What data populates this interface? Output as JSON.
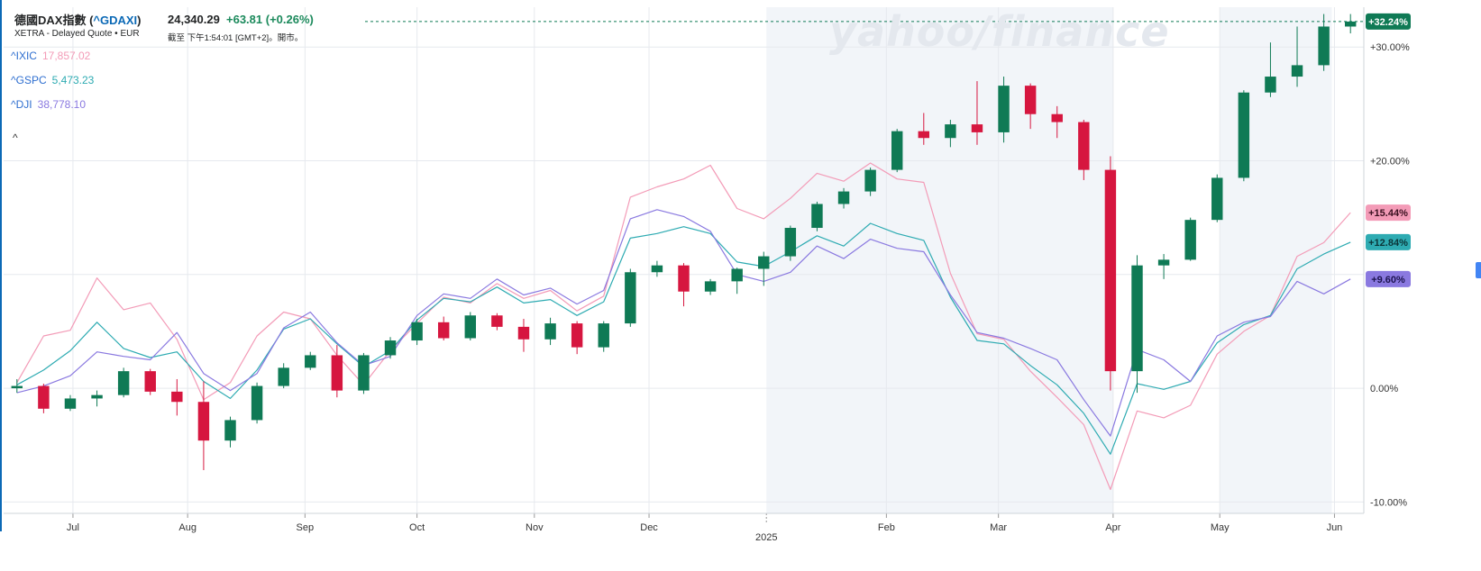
{
  "header": {
    "name": "德國DAX指數",
    "symbol_open": " (",
    "symbol": "^GDAXI",
    "symbol_close": ")",
    "price": "24,340.29",
    "change": "+63.81",
    "change_pct": "(+0.26%)",
    "source": "XETRA - Delayed Quote • EUR",
    "time": "截至 下午1:54:01 [GMT+2]。開市。",
    "watermark": "yahoo/finance"
  },
  "comparisons": [
    {
      "symbol": "^IXIC",
      "value": "17,857.02",
      "color": "#f39bb7"
    },
    {
      "symbol": "^GSPC",
      "value": "5,473.23",
      "color": "#2eabb2"
    },
    {
      "symbol": "^DJI",
      "value": "38,778.10",
      "color": "#8a79e0"
    }
  ],
  "collapse_icon": "^",
  "colors": {
    "up": "#0f7a55",
    "down": "#d6163f",
    "grid": "#e6e9ee",
    "shade": "#f2f5f9",
    "dax_badge": "#0f7a55",
    "ixic_badge": "#f39bb7",
    "gspc_badge": "#2eabb2",
    "dji_badge": "#8a79e0"
  },
  "chart_data": {
    "type": "line",
    "note_units": "x = trading week index from 2024-06-17 (week 0) to 2025-06-02 (week 50); y = % change",
    "x_ticks": [
      {
        "label": "Jul",
        "week": 2.1
      },
      {
        "label": "Aug",
        "week": 6.4
      },
      {
        "label": "Sep",
        "week": 10.8
      },
      {
        "label": "Oct",
        "week": 15.0
      },
      {
        "label": "Nov",
        "week": 19.4
      },
      {
        "label": "Dec",
        "week": 23.7
      },
      {
        "label": "Feb",
        "week": 32.6
      },
      {
        "label": "Mar",
        "week": 36.8
      },
      {
        "label": "Apr",
        "week": 41.1
      },
      {
        "label": "May",
        "week": 45.1
      },
      {
        "label": "Jun",
        "week": 49.4
      }
    ],
    "year_label": {
      "label": "2025",
      "week": 28.1
    },
    "y_ticks": [
      "+30.00%",
      "+20.00%",
      "+10.00%",
      "0.00%",
      "-10.00%"
    ],
    "y_tick_values": [
      30,
      20,
      10,
      0,
      -10
    ],
    "ylim": [
      -11,
      33.5
    ],
    "xlim": [
      -0.5,
      50.5
    ],
    "shaded_weeks": [
      [
        28.1,
        41.1
      ],
      [
        45.1,
        49.3
      ]
    ],
    "badges": [
      {
        "label": "+32.24%",
        "value": 32.24,
        "series": "dax"
      },
      {
        "label": "+15.44%",
        "value": 15.44,
        "series": "ixic"
      },
      {
        "label": "+12.84%",
        "value": 12.84,
        "series": "gspc"
      },
      {
        "label": "+9.60%",
        "value": 9.6,
        "series": "dji"
      }
    ],
    "dax_ohlc": [
      [
        0.0,
        0.8,
        -0.4,
        0.2
      ],
      [
        0.2,
        0.4,
        -2.2,
        -1.8
      ],
      [
        -1.8,
        -0.6,
        -2.0,
        -0.9
      ],
      [
        -0.9,
        -0.2,
        -1.6,
        -0.6
      ],
      [
        -0.6,
        1.8,
        -0.8,
        1.5
      ],
      [
        1.5,
        1.7,
        -0.6,
        -0.3
      ],
      [
        -0.3,
        0.8,
        -2.4,
        -1.2
      ],
      [
        -1.2,
        0.6,
        -7.2,
        -4.6
      ],
      [
        -4.6,
        -2.5,
        -5.2,
        -2.8
      ],
      [
        -2.8,
        0.5,
        -3.1,
        0.2
      ],
      [
        0.2,
        2.2,
        0.0,
        1.8
      ],
      [
        1.8,
        3.2,
        1.6,
        2.9
      ],
      [
        2.9,
        3.8,
        -0.8,
        -0.2
      ],
      [
        -0.2,
        3.1,
        -0.5,
        2.9
      ],
      [
        2.9,
        4.5,
        2.6,
        4.2
      ],
      [
        4.2,
        6.1,
        3.8,
        5.8
      ],
      [
        5.8,
        6.3,
        4.2,
        4.4
      ],
      [
        4.4,
        6.7,
        4.2,
        6.4
      ],
      [
        6.4,
        6.6,
        5.1,
        5.4
      ],
      [
        5.4,
        6.1,
        3.2,
        4.3
      ],
      [
        4.3,
        6.2,
        3.8,
        5.7
      ],
      [
        5.7,
        5.9,
        3.0,
        3.6
      ],
      [
        3.6,
        5.9,
        3.2,
        5.7
      ],
      [
        5.7,
        10.5,
        5.4,
        10.2
      ],
      [
        10.2,
        11.2,
        9.8,
        10.8
      ],
      [
        10.8,
        11.0,
        7.2,
        8.5
      ],
      [
        8.5,
        9.6,
        8.2,
        9.4
      ],
      [
        9.4,
        10.6,
        8.3,
        10.5
      ],
      [
        10.5,
        12.0,
        9.0,
        11.6
      ],
      [
        11.6,
        14.3,
        11.2,
        14.1
      ],
      [
        14.1,
        16.4,
        13.8,
        16.2
      ],
      [
        16.2,
        17.6,
        15.8,
        17.3
      ],
      [
        17.3,
        19.4,
        16.9,
        19.2
      ],
      [
        19.2,
        22.8,
        19.0,
        22.6
      ],
      [
        22.6,
        24.2,
        21.4,
        22.0
      ],
      [
        22.0,
        23.6,
        21.2,
        23.2
      ],
      [
        23.2,
        27.0,
        21.4,
        22.5
      ],
      [
        22.5,
        27.4,
        21.6,
        26.6
      ],
      [
        26.6,
        26.8,
        22.8,
        24.1
      ],
      [
        24.1,
        24.8,
        22.0,
        23.4
      ],
      [
        23.4,
        23.6,
        18.3,
        19.2
      ],
      [
        19.2,
        20.4,
        -0.2,
        1.5
      ],
      [
        1.5,
        11.7,
        -0.4,
        10.8
      ],
      [
        10.8,
        11.8,
        9.6,
        11.3
      ],
      [
        11.3,
        15.0,
        11.2,
        14.8
      ],
      [
        14.8,
        18.8,
        14.6,
        18.5
      ],
      [
        18.5,
        26.2,
        18.2,
        26.0
      ],
      [
        26.0,
        30.4,
        25.6,
        27.4
      ],
      [
        27.4,
        31.8,
        26.5,
        28.4
      ],
      [
        28.4,
        32.9,
        27.9,
        31.8
      ],
      [
        31.8,
        32.9,
        31.2,
        32.24
      ]
    ],
    "series": [
      {
        "key": "ixic",
        "values": [
          0.5,
          4.6,
          5.1,
          9.7,
          6.9,
          7.5,
          4.3,
          -1.0,
          0.5,
          4.6,
          6.7,
          6.1,
          2.9,
          0.3,
          3.3,
          5.7,
          8.0,
          7.5,
          9.2,
          7.9,
          8.6,
          6.8,
          8.1,
          16.8,
          17.7,
          18.4,
          19.6,
          15.8,
          14.9,
          16.7,
          18.9,
          18.2,
          19.8,
          18.4,
          18.1,
          10.1,
          4.8,
          4.3,
          1.5,
          -0.8,
          -3.2,
          -8.9,
          -2.0,
          -2.6,
          -1.5,
          3.0,
          5.0,
          6.4,
          11.6,
          12.8,
          15.44
        ]
      },
      {
        "key": "gspc",
        "values": [
          0.3,
          1.6,
          3.3,
          5.8,
          3.5,
          2.7,
          3.2,
          0.6,
          -0.9,
          1.6,
          5.2,
          6.1,
          3.9,
          1.9,
          3.3,
          6.0,
          7.9,
          7.6,
          8.9,
          7.5,
          7.8,
          6.4,
          7.6,
          13.2,
          13.6,
          14.2,
          13.6,
          11.1,
          10.7,
          12.0,
          13.4,
          12.5,
          14.5,
          13.6,
          13.0,
          8.0,
          4.2,
          3.9,
          2.0,
          0.3,
          -2.2,
          -5.8,
          0.4,
          -0.1,
          0.6,
          4.0,
          5.6,
          6.4,
          10.5,
          11.8,
          12.84
        ]
      },
      {
        "key": "dji",
        "values": [
          -0.4,
          0.2,
          1.1,
          3.2,
          2.8,
          2.5,
          4.9,
          1.3,
          -0.2,
          1.3,
          5.3,
          6.7,
          4.0,
          2.0,
          2.8,
          6.4,
          8.3,
          7.9,
          9.6,
          8.2,
          8.8,
          7.4,
          8.6,
          14.9,
          15.7,
          15.1,
          13.8,
          10.0,
          9.4,
          10.2,
          12.5,
          11.4,
          13.1,
          12.3,
          12.0,
          8.2,
          4.9,
          4.4,
          3.5,
          2.5,
          -1.0,
          -4.2,
          3.4,
          2.5,
          0.6,
          4.6,
          5.8,
          6.3,
          9.4,
          8.3,
          9.6
        ]
      }
    ]
  }
}
